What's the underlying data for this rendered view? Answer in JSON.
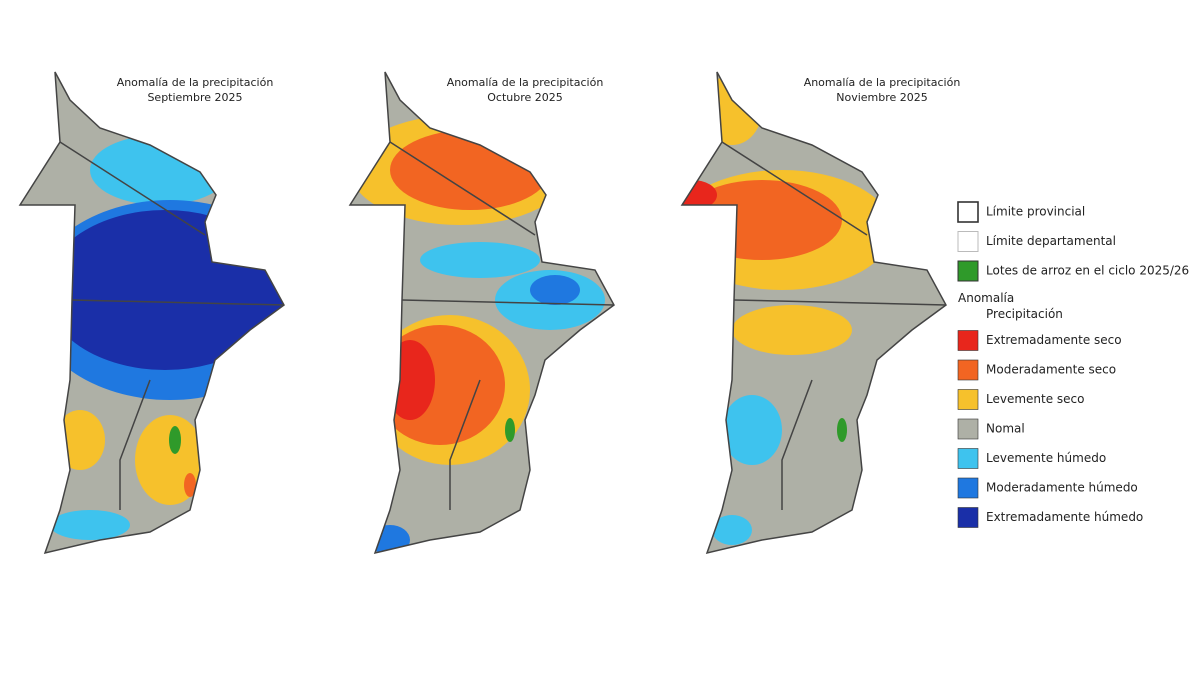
{
  "maps": [
    {
      "title": "Anomalía de la precipitación",
      "subtitle": "Septiembre 2025"
    },
    {
      "title": "Anomalía de la precipitación",
      "subtitle": "Octubre 2025"
    },
    {
      "title": "Anomalía de la precipitación",
      "subtitle": "Noviembre 2025"
    }
  ],
  "legend": {
    "items": [
      {
        "label": "Límite provincial",
        "color": "#ffffff"
      },
      {
        "label": "Límite departamental",
        "color": "#ffffff"
      },
      {
        "label": "Lotes de arroz en el ciclo 2025/26",
        "color": "#2f9a2a"
      }
    ],
    "heading": "Anomalía",
    "subheading": "Precipitación",
    "classes": [
      {
        "label": "Extremadamente seco",
        "color": "#e8261c"
      },
      {
        "label": "Moderadamente seco",
        "color": "#f26522"
      },
      {
        "label": "Levemente seco",
        "color": "#f6c12c"
      },
      {
        "label": "Nomal",
        "color": "#aeb0a6"
      },
      {
        "label": "Levemente húmedo",
        "color": "#3ec3ee"
      },
      {
        "label": "Moderadamente húmedo",
        "color": "#1f78e0"
      },
      {
        "label": "Extremadamente húmedo",
        "color": "#1a2fa8"
      }
    ]
  }
}
